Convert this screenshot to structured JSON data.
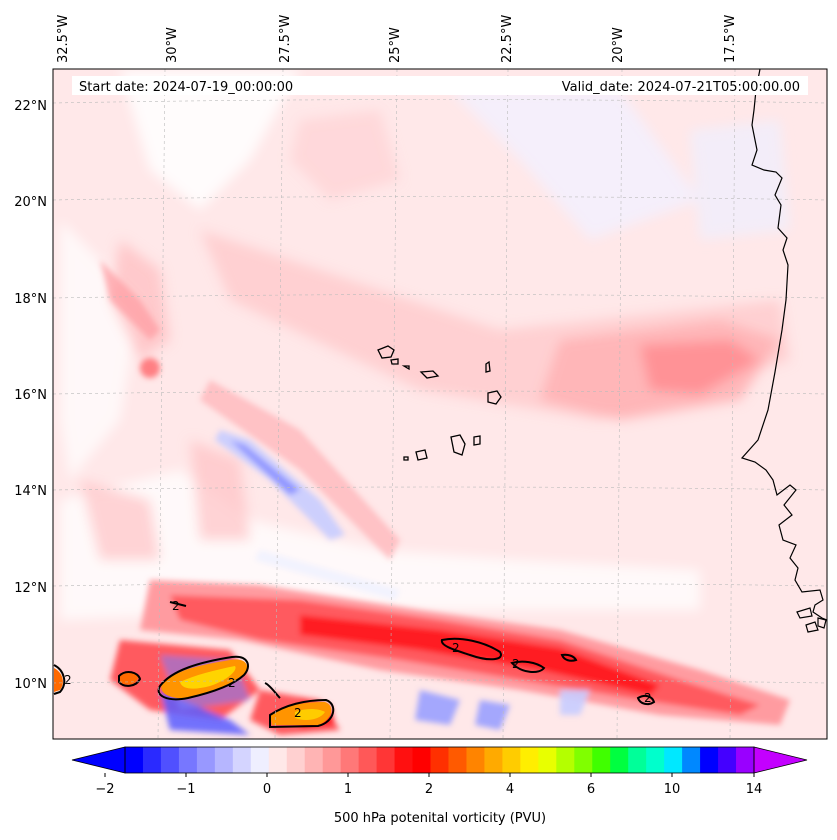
{
  "map": {
    "start_date": "Start date: 2024-07-19_00:00:00",
    "valid_date": "Valid_date: 2024-07-21T05:00:00.00",
    "top_lon_labels": [
      "32.5°W",
      "30°W",
      "27.5°W",
      "25°W",
      "22.5°W",
      "20°W",
      "17.5°W"
    ],
    "left_lat_labels": [
      "22°N",
      "20°N",
      "18°N",
      "16°N",
      "14°N",
      "12°N",
      "10°N"
    ],
    "contour_label": "2",
    "colors": {
      "land_outline": "#000000",
      "frame": "#000000",
      "grid": "#bbbbbb"
    }
  },
  "colorbar": {
    "label": "500 hPa potenital vorticity (PVU)",
    "tick_labels": [
      "−2",
      "−1",
      "0",
      "1",
      "2",
      "4",
      "6",
      "10",
      "14"
    ],
    "colors": [
      "#0000ff",
      "#2a2aff",
      "#5050ff",
      "#7777ff",
      "#9898ff",
      "#b6b6ff",
      "#d4d4ff",
      "#efefff",
      "#ffe8e8",
      "#ffd0d0",
      "#ffb4b4",
      "#ff9898",
      "#ff7878",
      "#ff5858",
      "#ff3636",
      "#ff1010",
      "#ff0000",
      "#ff3000",
      "#ff5a00",
      "#ff8400",
      "#ffaa00",
      "#ffcc00",
      "#ffee00",
      "#e8ff00",
      "#b4ff00",
      "#80ff00",
      "#40ff00",
      "#00ff40",
      "#00ff99",
      "#00ffcc",
      "#00e8ff",
      "#0088ff",
      "#0000ff",
      "#4400ff",
      "#9900ff"
    ],
    "under_color": "#0000ff",
    "over_color": "#c300ff"
  }
}
